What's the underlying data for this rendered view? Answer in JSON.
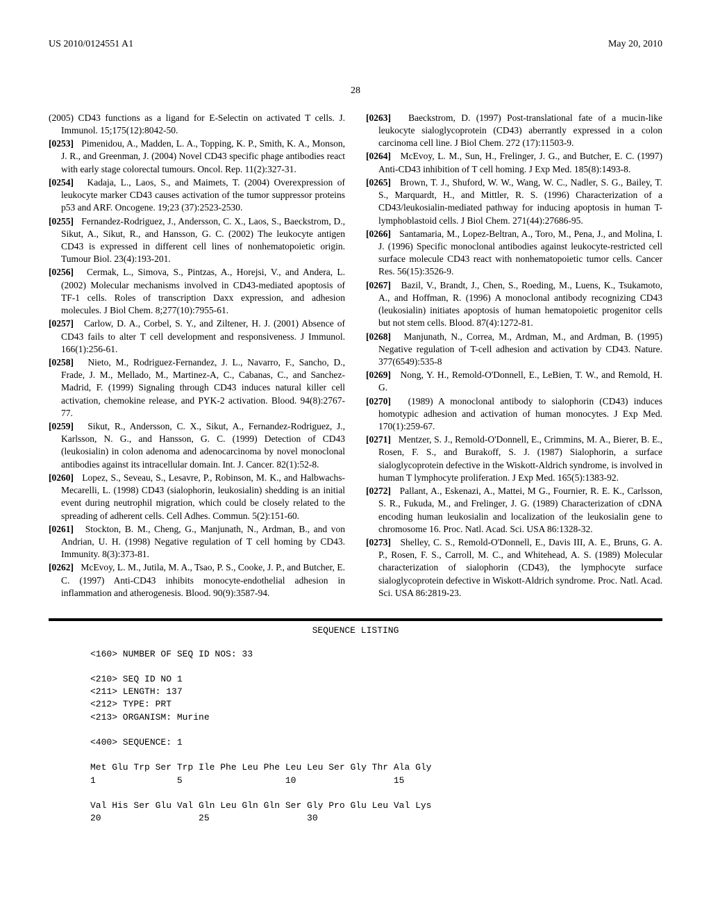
{
  "header": {
    "left": "US 2010/0124551 A1",
    "right": "May 20, 2010"
  },
  "pagenum": "28",
  "refs": [
    {
      "pre": "(2005) CD43 functions as a ligand for E-Selectin on activated T cells. J. Immunol. 15;175(12):8042-50."
    },
    {
      "num": "[0253]",
      "text": "Pimenidou, A., Madden, L. A., Topping, K. P., Smith, K. A., Monson, J. R., and Greenman, J. (2004) Novel CD43 specific phage antibodies react with early stage colorectal tumours. Oncol. Rep. 11(2):327-31."
    },
    {
      "num": "[0254]",
      "text": "Kadaja, L., Laos, S., and Maimets, T. (2004) Overexpression of leukocyte marker CD43 causes activation of the tumor suppressor proteins p53 and ARF. Oncogene. 19;23 (37):2523-2530."
    },
    {
      "num": "[0255]",
      "text": "Fernandez-Rodriguez, J., Andersson, C. X., Laos, S., Baeckstrom, D., Sikut, A., Sikut, R., and Hansson, G. C. (2002) The leukocyte antigen CD43 is expressed in different cell lines of nonhematopoietic origin. Tumour Biol. 23(4):193-201."
    },
    {
      "num": "[0256]",
      "text": "Cermak, L., Simova, S., Pintzas, A., Horejsi, V., and Andera, L. (2002) Molecular mechanisms involved in CD43-mediated apoptosis of TF-1 cells. Roles of transcription Daxx expression, and adhesion molecules. J Biol Chem. 8;277(10):7955-61."
    },
    {
      "num": "[0257]",
      "text": "Carlow, D. A., Corbel, S. Y., and Ziltener, H. J. (2001) Absence of CD43 fails to alter T cell development and responsiveness. J Immunol. 166(1):256-61."
    },
    {
      "num": "[0258]",
      "text": "Nieto, M., Rodriguez-Fernandez, J. L., Navarro, F., Sancho, D., Frade, J. M., Mellado, M., Martinez-A, C., Cabanas, C., and Sanchez-Madrid, F. (1999) Signaling through CD43 induces natural killer cell activation, chemokine release, and PYK-2 activation. Blood. 94(8):2767-77."
    },
    {
      "num": "[0259]",
      "text": "Sikut, R., Andersson, C. X., Sikut, A., Fernandez-Rodriguez, J., Karlsson, N. G., and Hansson, G. C. (1999) Detection of CD43 (leukosialin) in colon adenoma and adenocarcinoma by novel monoclonal antibodies against its intracellular domain. Int. J. Cancer. 82(1):52-8."
    },
    {
      "num": "[0260]",
      "text": "Lopez, S., Seveau, S., Lesavre, P., Robinson, M. K., and Halbwachs-Mecarelli, L. (1998) CD43 (sialophorin, leukosialin) shedding is an initial event during neutrophil migration, which could be closely related to the spreading of adherent cells. Cell Adhes. Commun. 5(2):151-60."
    },
    {
      "num": "[0261]",
      "text": "Stockton, B. M., Cheng, G., Manjunath, N., Ardman, B., and von Andrian, U. H. (1998) Negative regulation of T cell homing by CD43. Immunity. 8(3):373-81."
    },
    {
      "num": "[0262]",
      "text": "McEvoy, L. M., Jutila, M. A., Tsao, P. S., Cooke, J. P., and Butcher, E. C. (1997) Anti-CD43 inhibits monocyte-endothelial adhesion in inflammation and atherogenesis. Blood. 90(9):3587-94."
    },
    {
      "num": "[0263]",
      "text": "Baeckstrom, D. (1997) Post-translational fate of a mucin-like leukocyte sialoglycoprotein (CD43) aberrantly expressed in a colon carcinoma cell line. J Biol Chem. 272 (17):11503-9."
    },
    {
      "num": "[0264]",
      "text": "McEvoy, L. M., Sun, H., Frelinger, J. G., and Butcher, E. C. (1997) Anti-CD43 inhibition of T cell homing. J Exp Med. 185(8):1493-8."
    },
    {
      "num": "[0265]",
      "text": "Brown, T. J., Shuford, W. W., Wang, W. C., Nadler, S. G., Bailey, T. S., Marquardt, H., and Mittler, R. S. (1996) Characterization of a CD43/leukosialin-mediated pathway for inducing apoptosis in human T-lymphoblastoid cells. J Biol Chem. 271(44):27686-95."
    },
    {
      "num": "[0266]",
      "text": "Santamaria, M., Lopez-Beltran, A., Toro, M., Pena, J., and Molina, I. J. (1996) Specific monoclonal antibodies against leukocyte-restricted cell surface molecule CD43 react with nonhematopoietic tumor cells. Cancer Res. 56(15):3526-9."
    },
    {
      "num": "[0267]",
      "text": "Bazil, V., Brandt, J., Chen, S., Roeding, M., Luens, K., Tsukamoto, A., and Hoffman, R. (1996) A monoclonal antibody recognizing CD43 (leukosialin) initiates apoptosis of human hematopoietic progenitor cells but not stem cells. Blood. 87(4):1272-81."
    },
    {
      "num": "[0268]",
      "text": "Manjunath, N., Correa, M., Ardman, M., and Ardman, B. (1995) Negative regulation of T-cell adhesion and activation by CD43. Nature. 377(6549):535-8"
    },
    {
      "num": "[0269]",
      "text": "Nong, Y. H., Remold-O'Donnell, E., LeBien, T. W., and Remold, H. G."
    },
    {
      "num": "[0270]",
      "text": "(1989) A monoclonal antibody to sialophorin (CD43) induces homotypic adhesion and activation of human monocytes. J Exp Med. 170(1):259-67."
    },
    {
      "num": "[0271]",
      "text": "Mentzer, S. J., Remold-O'Donnell, E., Crimmins, M. A., Bierer, B. E., Rosen, F. S., and Burakoff, S. J. (1987) Sialophorin, a surface sialoglycoprotein defective in the Wiskott-Aldrich syndrome, is involved in human T lymphocyte proliferation. J Exp Med. 165(5):1383-92."
    },
    {
      "num": "[0272]",
      "text": "Pallant, A., Eskenazi, A., Mattei, M G., Fournier, R. E. K., Carlsson, S. R., Fukuda, M., and Frelinger, J. G. (1989) Characterization of cDNA encoding human leukosialin and localization of the leukosialin gene to chromosome 16. Proc. Natl. Acad. Sci. USA 86:1328-32."
    },
    {
      "num": "[0273]",
      "text": "Shelley, C. S., Remold-O'Donnell, E., Davis III, A. E., Bruns, G. A. P., Rosen, F. S., Carroll, M. C., and Whitehead, A. S. (1989) Molecular characterization of sialophorin (CD43), the lymphocyte surface sialoglycoprotein defective in Wiskott-Aldrich syndrome. Proc. Natl. Acad. Sci. USA 86:2819-23."
    }
  ],
  "seq": {
    "title": "SEQUENCE LISTING",
    "body": "<160> NUMBER OF SEQ ID NOS: 33\n\n<210> SEQ ID NO 1\n<211> LENGTH: 137\n<212> TYPE: PRT\n<213> ORGANISM: Murine\n\n<400> SEQUENCE: 1\n\nMet Glu Trp Ser Trp Ile Phe Leu Phe Leu Leu Ser Gly Thr Ala Gly\n1               5                   10                  15\n\nVal His Ser Glu Val Gln Leu Gln Gln Ser Gly Pro Glu Leu Val Lys\n20                  25                  30"
  }
}
